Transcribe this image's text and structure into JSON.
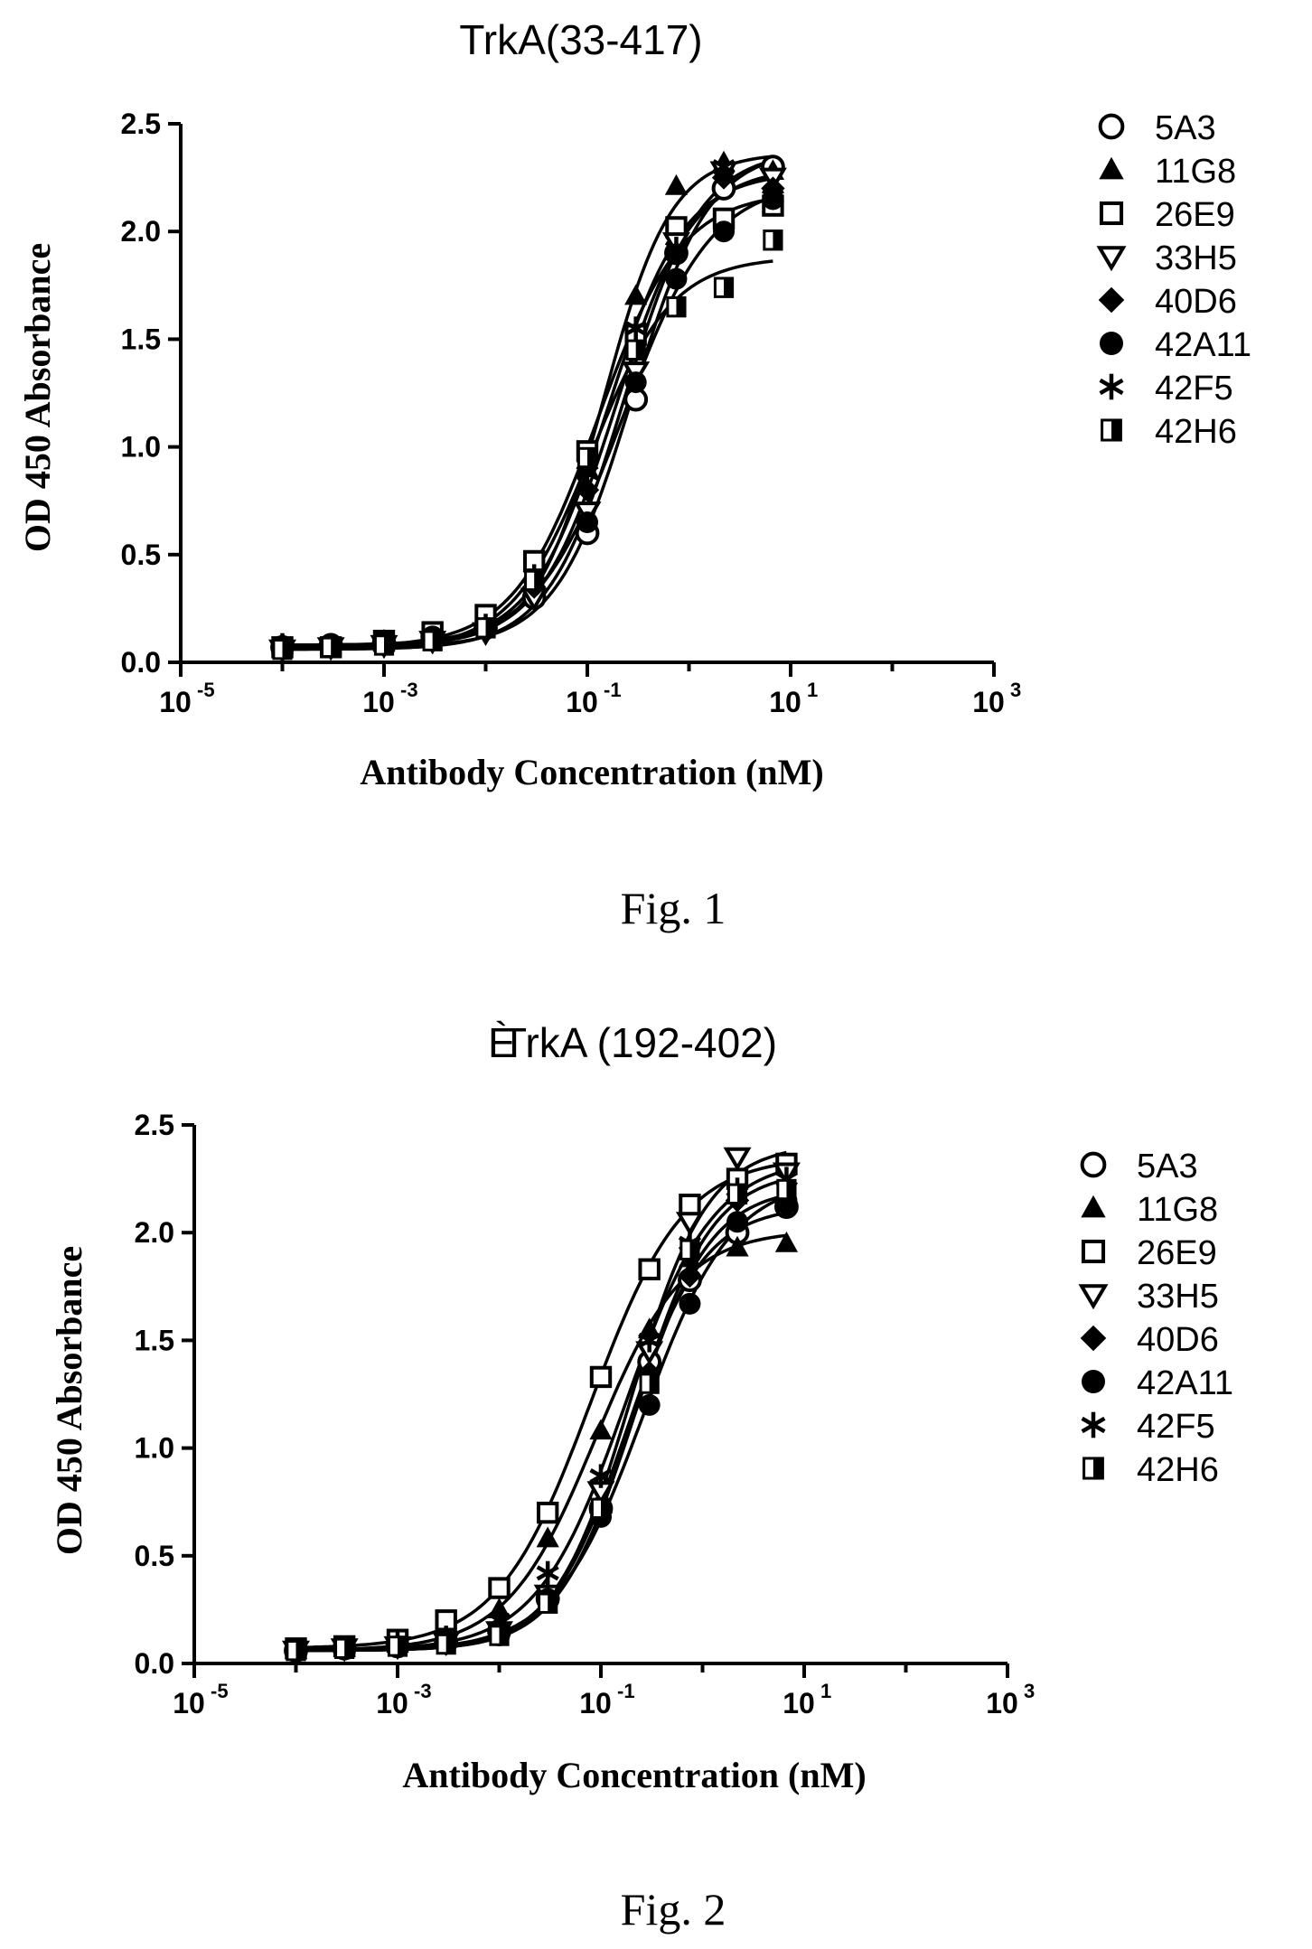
{
  "figures": [
    {
      "caption": "Fig. 1"
    },
    {
      "caption": "Fig. 2"
    }
  ],
  "chart_data": [
    {
      "type": "scatter",
      "title": "TrkA(33-417)",
      "xlabel": "Antibody Concentration (nM)",
      "ylabel": "OD 450 Absorbance",
      "x_scale": "log",
      "xlim": [
        1e-05,
        1000
      ],
      "ylim": [
        0,
        2.5
      ],
      "x_tick_labels": [
        {
          "base": "10",
          "exp": "-5"
        },
        {
          "base": "10",
          "exp": "-3"
        },
        {
          "base": "10",
          "exp": "-1"
        },
        {
          "base": "10",
          "exp": "1"
        },
        {
          "base": "10",
          "exp": "3"
        }
      ],
      "y_tick_labels": [
        "0.0",
        "0.5",
        "1.0",
        "1.5",
        "2.0",
        "2.5"
      ],
      "grid": false,
      "legend_position": "right",
      "fitted_curves": true,
      "x": [
        0.0001,
        0.0003,
        0.001,
        0.003,
        0.01,
        0.03,
        0.1,
        0.3,
        0.75,
        2.2,
        6.7
      ],
      "series": [
        {
          "name": "5A3",
          "marker": "open-circle",
          "values": [
            0.07,
            0.08,
            0.09,
            0.12,
            0.16,
            0.3,
            0.6,
            1.22,
            1.9,
            2.2,
            2.3
          ]
        },
        {
          "name": "11G8",
          "marker": "filled-triangle",
          "values": [
            0.08,
            0.08,
            0.1,
            0.13,
            0.2,
            0.42,
            0.9,
            1.7,
            2.21,
            2.32,
            2.28
          ]
        },
        {
          "name": "26E9",
          "marker": "open-square",
          "values": [
            0.07,
            0.07,
            0.1,
            0.14,
            0.22,
            0.47,
            0.98,
            1.52,
            2.02,
            2.06,
            2.12
          ]
        },
        {
          "name": "33H5",
          "marker": "open-triangle-down",
          "values": [
            0.06,
            0.07,
            0.08,
            0.1,
            0.14,
            0.3,
            0.7,
            1.35,
            1.95,
            2.28,
            2.25
          ]
        },
        {
          "name": "40D6",
          "marker": "filled-diamond",
          "values": [
            0.08,
            0.08,
            0.09,
            0.1,
            0.15,
            0.35,
            0.8,
            1.45,
            1.9,
            2.25,
            2.2
          ]
        },
        {
          "name": "42A11",
          "marker": "filled-circle",
          "values": [
            0.07,
            0.08,
            0.1,
            0.12,
            0.16,
            0.38,
            0.65,
            1.3,
            1.78,
            2.0,
            2.15
          ]
        },
        {
          "name": "42F5",
          "marker": "asterisk",
          "values": [
            0.08,
            0.08,
            0.09,
            0.11,
            0.17,
            0.4,
            0.88,
            1.55,
            1.92,
            2.3,
            2.16
          ]
        },
        {
          "name": "42H6",
          "marker": "half-filled-square",
          "values": [
            0.06,
            0.07,
            0.08,
            0.1,
            0.16,
            0.38,
            0.95,
            1.45,
            1.65,
            1.74,
            1.96
          ]
        }
      ]
    },
    {
      "type": "scatter",
      "title": "TrkA (192-402)",
      "title_prefix": "È",
      "xlabel": "Antibody Concentration (nM)",
      "ylabel": "OD 450 Absorbance",
      "x_scale": "log",
      "xlim": [
        1e-05,
        1000
      ],
      "ylim": [
        0,
        2.5
      ],
      "x_tick_labels": [
        {
          "base": "10",
          "exp": "-5"
        },
        {
          "base": "10",
          "exp": "-3"
        },
        {
          "base": "10",
          "exp": "-1"
        },
        {
          "base": "10",
          "exp": "1"
        },
        {
          "base": "10",
          "exp": "3"
        }
      ],
      "y_tick_labels": [
        "0.0",
        "0.5",
        "1.0",
        "1.5",
        "2.0",
        "2.5"
      ],
      "grid": false,
      "legend_position": "right",
      "fitted_curves": true,
      "x": [
        0.0001,
        0.0003,
        0.001,
        0.003,
        0.01,
        0.03,
        0.1,
        0.3,
        0.75,
        2.2,
        6.7
      ],
      "series": [
        {
          "name": "5A3",
          "marker": "open-circle",
          "values": [
            0.06,
            0.07,
            0.08,
            0.1,
            0.15,
            0.3,
            0.72,
            1.4,
            1.78,
            2.0,
            2.12
          ]
        },
        {
          "name": "11G8",
          "marker": "filled-triangle",
          "values": [
            0.06,
            0.07,
            0.09,
            0.13,
            0.25,
            0.58,
            1.08,
            1.55,
            1.88,
            1.93,
            1.95
          ]
        },
        {
          "name": "26E9",
          "marker": "open-square",
          "values": [
            0.07,
            0.08,
            0.11,
            0.2,
            0.35,
            0.7,
            1.33,
            1.83,
            2.13,
            2.25,
            2.32
          ]
        },
        {
          "name": "33H5",
          "marker": "open-triangle-down",
          "values": [
            0.06,
            0.07,
            0.08,
            0.1,
            0.15,
            0.32,
            0.8,
            1.45,
            2.05,
            2.35,
            2.28
          ]
        },
        {
          "name": "40D6",
          "marker": "filled-diamond",
          "values": [
            0.06,
            0.07,
            0.08,
            0.09,
            0.14,
            0.3,
            0.7,
            1.35,
            1.8,
            2.15,
            2.12
          ]
        },
        {
          "name": "42A11",
          "marker": "filled-circle",
          "values": [
            0.06,
            0.07,
            0.08,
            0.1,
            0.13,
            0.3,
            0.68,
            1.2,
            1.67,
            2.05,
            2.15
          ]
        },
        {
          "name": "42F5",
          "marker": "asterisk",
          "values": [
            0.06,
            0.07,
            0.09,
            0.12,
            0.2,
            0.42,
            0.87,
            1.5,
            1.95,
            2.2,
            2.25
          ]
        },
        {
          "name": "42H6",
          "marker": "half-filled-square",
          "values": [
            0.06,
            0.07,
            0.08,
            0.09,
            0.13,
            0.28,
            0.72,
            1.3,
            1.92,
            2.18,
            2.2
          ]
        }
      ]
    }
  ]
}
